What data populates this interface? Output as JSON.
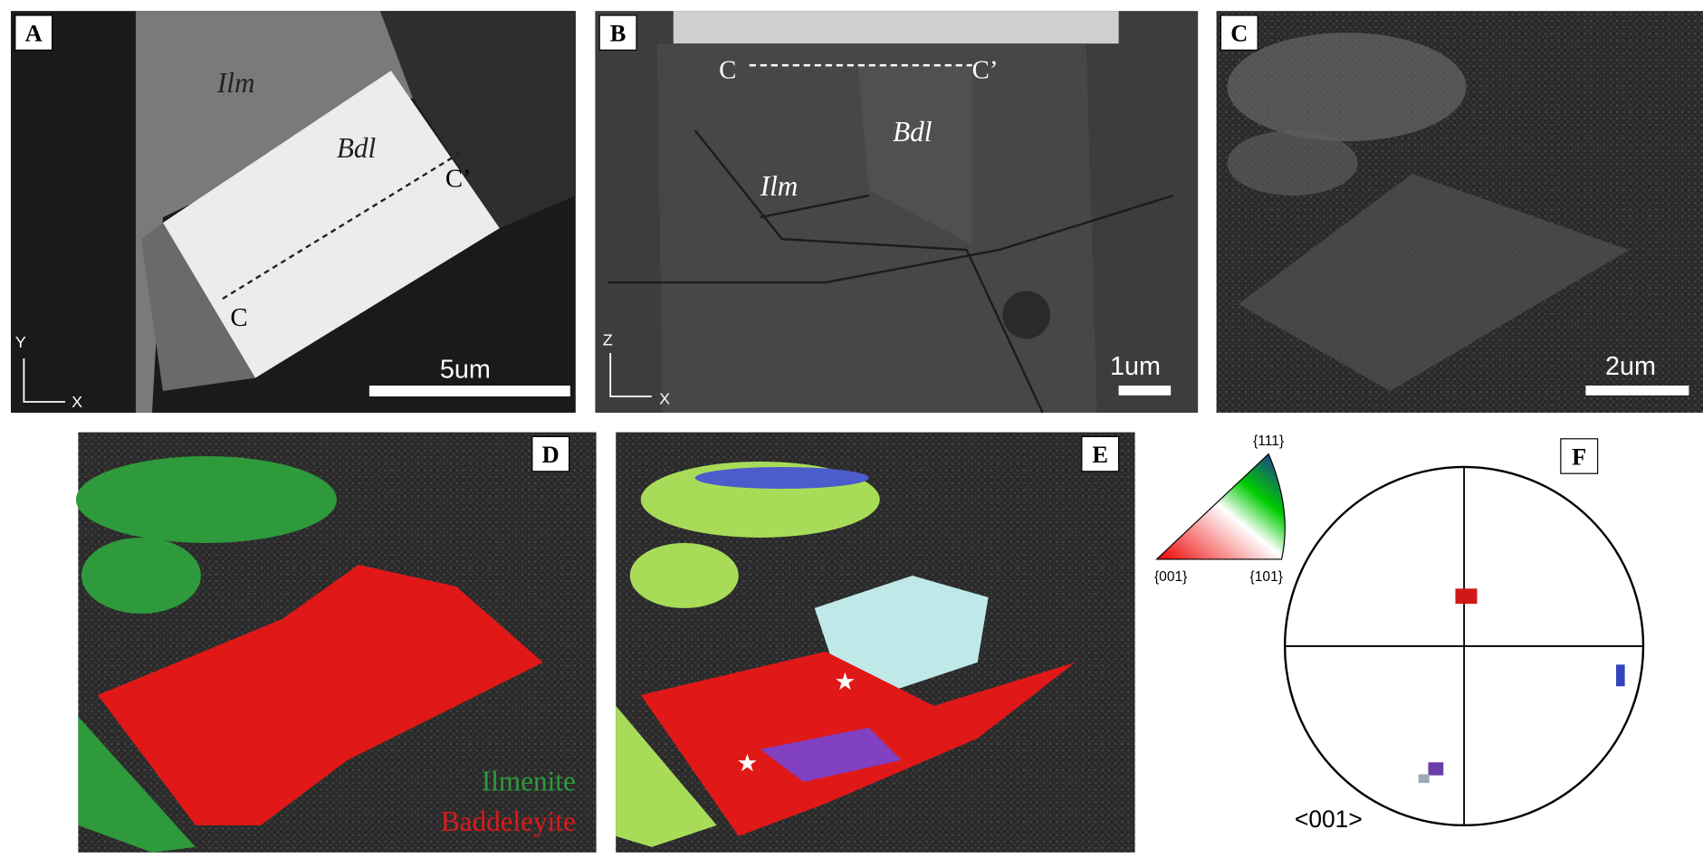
{
  "panels": [
    {
      "label": "A",
      "texts": [
        "Ilm",
        "Bdl",
        "C",
        "C’"
      ],
      "scale_bar": "5um",
      "axes": [
        "Y",
        "X"
      ]
    },
    {
      "label": "B",
      "texts": [
        "C",
        "C’",
        "Ilm",
        "Bdl"
      ],
      "scale_bar": "1um",
      "axes": [
        "Z",
        "X"
      ]
    },
    {
      "label": "C",
      "scale_bar": "2um"
    },
    {
      "label": "D",
      "legend": [
        "Ilmenite",
        "Baddeleyite"
      ]
    },
    {
      "label": "E"
    },
    {
      "label": "F",
      "pole": "<001>"
    }
  ],
  "ipf_key": {
    "top": "{111}",
    "left": "{001}",
    "right": "{101}"
  }
}
